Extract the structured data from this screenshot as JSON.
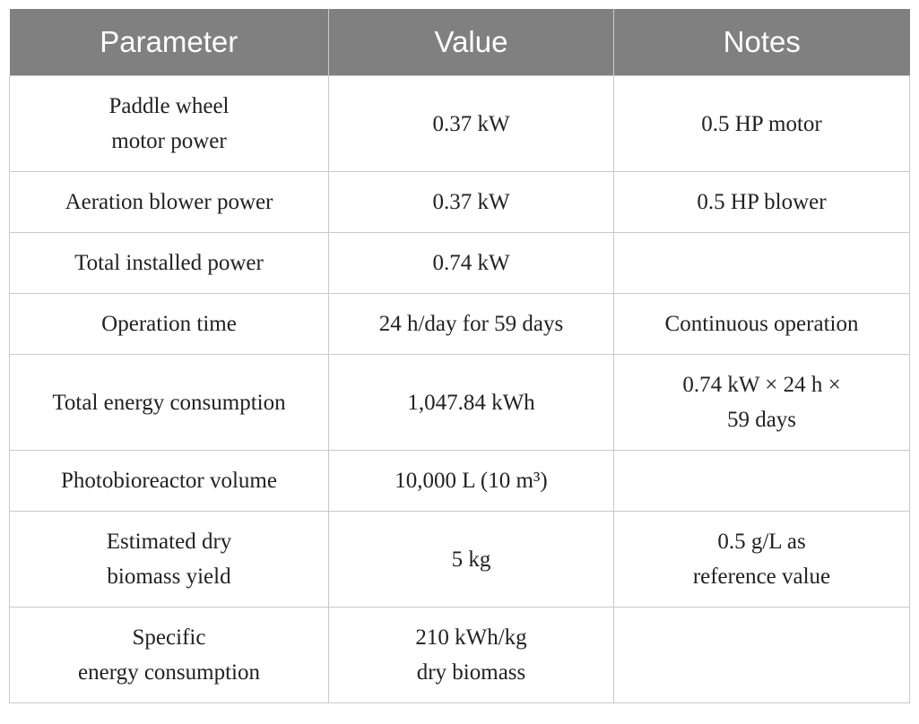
{
  "table": {
    "headers": [
      "Parameter",
      "Value",
      "Notes"
    ],
    "rows": [
      {
        "parameter": [
          "Paddle wheel",
          "motor power"
        ],
        "value": [
          "0.37 kW"
        ],
        "notes": [
          "0.5 HP motor"
        ]
      },
      {
        "parameter": [
          "Aeration blower power"
        ],
        "value": [
          "0.37 kW"
        ],
        "notes": [
          "0.5 HP blower"
        ]
      },
      {
        "parameter": [
          "Total installed power"
        ],
        "value": [
          "0.74 kW"
        ],
        "notes": [
          ""
        ]
      },
      {
        "parameter": [
          "Operation time"
        ],
        "value": [
          "24 h/day for 59 days"
        ],
        "notes": [
          "Continuous operation"
        ]
      },
      {
        "parameter": [
          "Total energy consumption"
        ],
        "value": [
          "1,047.84 kWh"
        ],
        "notes": [
          "0.74 kW × 24 h ×",
          "59 days"
        ]
      },
      {
        "parameter": [
          "Photobioreactor volume"
        ],
        "value": [
          "10,000 L (10 m³)"
        ],
        "notes": [
          ""
        ]
      },
      {
        "parameter": [
          "Estimated dry",
          "biomass yield"
        ],
        "value": [
          "5 kg"
        ],
        "notes": [
          "0.5 g/L as",
          "reference value"
        ]
      },
      {
        "parameter": [
          "Specific",
          "energy consumption"
        ],
        "value": [
          "210 kWh/kg",
          "dry biomass"
        ],
        "notes": [
          ""
        ]
      }
    ]
  }
}
